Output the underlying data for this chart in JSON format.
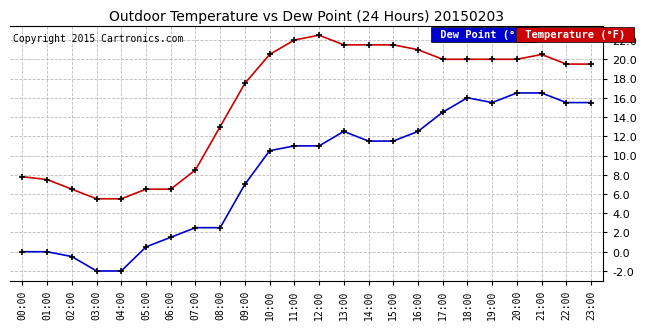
{
  "title": "Outdoor Temperature vs Dew Point (24 Hours) 20150203",
  "copyright": "Copyright 2015 Cartronics.com",
  "hours": [
    "00:00",
    "01:00",
    "02:00",
    "03:00",
    "04:00",
    "05:00",
    "06:00",
    "07:00",
    "08:00",
    "09:00",
    "10:00",
    "11:00",
    "12:00",
    "13:00",
    "14:00",
    "15:00",
    "16:00",
    "17:00",
    "18:00",
    "19:00",
    "20:00",
    "21:00",
    "22:00",
    "23:00"
  ],
  "temperature": [
    7.8,
    7.5,
    6.5,
    5.5,
    5.5,
    6.5,
    6.5,
    8.5,
    13.0,
    17.5,
    20.5,
    22.0,
    22.5,
    21.5,
    21.5,
    21.5,
    21.0,
    20.0,
    20.0,
    20.0,
    20.0,
    20.5,
    19.5,
    19.5
  ],
  "dew_point": [
    0.0,
    0.0,
    -0.5,
    -2.0,
    -2.0,
    0.5,
    1.5,
    2.5,
    2.5,
    7.0,
    10.5,
    11.0,
    11.0,
    12.5,
    11.5,
    11.5,
    12.5,
    14.5,
    16.0,
    15.5,
    16.5,
    16.5,
    15.5,
    15.5
  ],
  "temp_color": "#cc0000",
  "dew_color": "#0000cc",
  "bg_color": "#ffffff",
  "grid_color": "#bbbbbb",
  "ylim": [
    -3.0,
    23.5
  ],
  "yticks": [
    -2.0,
    0.0,
    2.0,
    4.0,
    6.0,
    8.0,
    10.0,
    12.0,
    14.0,
    16.0,
    18.0,
    20.0,
    22.0
  ],
  "legend_dew_bg": "#0000cc",
  "legend_temp_bg": "#cc0000",
  "legend_dew_text": "Dew Point (°F)",
  "legend_temp_text": "Temperature (°F)"
}
